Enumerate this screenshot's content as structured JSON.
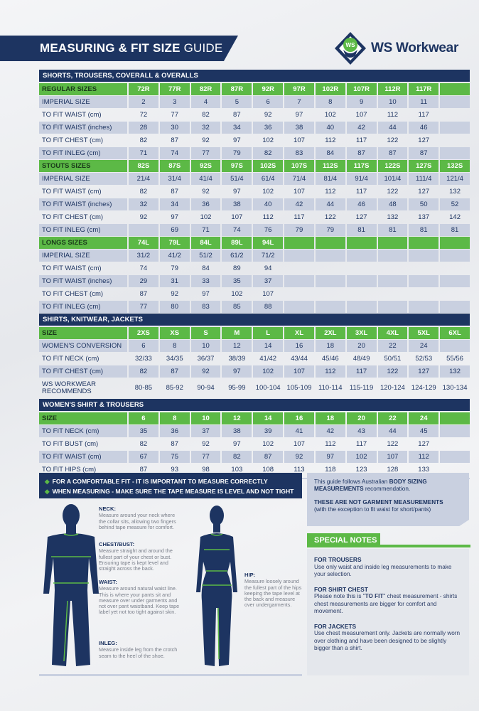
{
  "header": {
    "title_bold": "MEASURING & FIT SIZE",
    "title_light": "GUIDE",
    "brand": "WS Workwear",
    "logo_text": "WS"
  },
  "colors": {
    "navy": "#1d3461",
    "green": "#5cb946",
    "row_shade": "#c9d0e0"
  },
  "sections": [
    {
      "title": "SHORTS, TROUSERS, COVERALL & OVERALLS",
      "groups": [
        {
          "header": [
            "REGULAR SIZES",
            "72R",
            "77R",
            "82R",
            "87R",
            "92R",
            "97R",
            "102R",
            "107R",
            "112R",
            "117R",
            ""
          ],
          "rows": [
            [
              "IMPERIAL SIZE",
              "2",
              "3",
              "4",
              "5",
              "6",
              "7",
              "8",
              "9",
              "10",
              "11",
              ""
            ],
            [
              "TO FIT WAIST (cm)",
              "72",
              "77",
              "82",
              "87",
              "92",
              "97",
              "102",
              "107",
              "112",
              "117",
              ""
            ],
            [
              "TO FIT WAIST (inches)",
              "28",
              "30",
              "32",
              "34",
              "36",
              "38",
              "40",
              "42",
              "44",
              "46",
              ""
            ],
            [
              "TO FIT CHEST (cm)",
              "82",
              "87",
              "92",
              "97",
              "102",
              "107",
              "112",
              "117",
              "122",
              "127",
              ""
            ],
            [
              "TO FIT INLEG (cm)",
              "71",
              "74",
              "77",
              "79",
              "82",
              "83",
              "84",
              "87",
              "87",
              "87",
              ""
            ]
          ]
        },
        {
          "header": [
            "STOUTS SIZES",
            "82S",
            "87S",
            "92S",
            "97S",
            "102S",
            "107S",
            "112S",
            "117S",
            "122S",
            "127S",
            "132S"
          ],
          "rows": [
            [
              "IMPERIAL SIZE",
              "21/4",
              "31/4",
              "41/4",
              "51/4",
              "61/4",
              "71/4",
              "81/4",
              "91/4",
              "101/4",
              "111/4",
              "121/4"
            ],
            [
              "TO FIT WAIST (cm)",
              "82",
              "87",
              "92",
              "97",
              "102",
              "107",
              "112",
              "117",
              "122",
              "127",
              "132"
            ],
            [
              "TO FIT WAIST (inches)",
              "32",
              "34",
              "36",
              "38",
              "40",
              "42",
              "44",
              "46",
              "48",
              "50",
              "52"
            ],
            [
              "TO FIT CHEST (cm)",
              "92",
              "97",
              "102",
              "107",
              "112",
              "117",
              "122",
              "127",
              "132",
              "137",
              "142"
            ],
            [
              "TO FIT INLEG (cm)",
              "",
              "69",
              "71",
              "74",
              "76",
              "79",
              "79",
              "81",
              "81",
              "81",
              "81"
            ]
          ]
        },
        {
          "header": [
            "LONGS SIZES",
            "74L",
            "79L",
            "84L",
            "89L",
            "94L",
            "",
            "",
            "",
            "",
            "",
            ""
          ],
          "rows": [
            [
              "IMPERIAL SIZE",
              "31/2",
              "41/2",
              "51/2",
              "61/2",
              "71/2",
              "",
              "",
              "",
              "",
              "",
              ""
            ],
            [
              "TO FIT WAIST (cm)",
              "74",
              "79",
              "84",
              "89",
              "94",
              "",
              "",
              "",
              "",
              "",
              ""
            ],
            [
              "TO FIT WAIST (inches)",
              "29",
              "31",
              "33",
              "35",
              "37",
              "",
              "",
              "",
              "",
              "",
              ""
            ],
            [
              "TO FIT CHEST (cm)",
              "87",
              "92",
              "97",
              "102",
              "107",
              "",
              "",
              "",
              "",
              "",
              ""
            ],
            [
              "TO FIT INLEG (cm)",
              "77",
              "80",
              "83",
              "85",
              "88",
              "",
              "",
              "",
              "",
              "",
              ""
            ]
          ]
        }
      ]
    },
    {
      "title": "SHIRTS, KNITWEAR, JACKETS",
      "groups": [
        {
          "header": [
            "SIZE",
            "2XS",
            "XS",
            "S",
            "M",
            "L",
            "XL",
            "2XL",
            "3XL",
            "4XL",
            "5XL",
            "6XL"
          ],
          "rows": [
            [
              "WOMEN'S CONVERSION",
              "6",
              "8",
              "10",
              "12",
              "14",
              "16",
              "18",
              "20",
              "22",
              "24",
              ""
            ],
            [
              "TO FIT NECK (cm)",
              "32/33",
              "34/35",
              "36/37",
              "38/39",
              "41/42",
              "43/44",
              "45/46",
              "48/49",
              "50/51",
              "52/53",
              "55/56"
            ],
            [
              "TO FIT CHEST (cm)",
              "82",
              "87",
              "92",
              "97",
              "102",
              "107",
              "112",
              "117",
              "122",
              "127",
              "132"
            ],
            [
              "WS WORKWEAR RECOMMENDS",
              "80-85",
              "85-92",
              "90-94",
              "95-99",
              "100-104",
              "105-109",
              "110-114",
              "115-119",
              "120-124",
              "124-129",
              "130-134"
            ]
          ]
        }
      ]
    },
    {
      "title": "WOMEN'S SHIRT & TROUSERS",
      "groups": [
        {
          "header": [
            "SIZE",
            "6",
            "8",
            "10",
            "12",
            "14",
            "16",
            "18",
            "20",
            "22",
            "24",
            ""
          ],
          "rows": [
            [
              "TO FIT NECK (cm)",
              "35",
              "36",
              "37",
              "38",
              "39",
              "41",
              "42",
              "43",
              "44",
              "45",
              ""
            ],
            [
              "TO FIT BUST (cm)",
              "82",
              "87",
              "92",
              "97",
              "102",
              "107",
              "112",
              "117",
              "122",
              "127",
              ""
            ],
            [
              "TO FIT WAIST (cm)",
              "67",
              "75",
              "77",
              "82",
              "87",
              "92",
              "97",
              "102",
              "107",
              "112",
              ""
            ],
            [
              "TO FIT HIPS (cm)",
              "87",
              "93",
              "98",
              "103",
              "108",
              "113",
              "118",
              "123",
              "128",
              "133",
              ""
            ]
          ]
        }
      ]
    }
  ],
  "tips": [
    "FOR A COMFORTABLE FIT - IT IS IMPORTANT TO MEASURE CORRECTLY",
    "WHEN MEASURING - MAKE SURE THE TAPE MEASURE IS LEVEL AND NOT TIGHT"
  ],
  "measure": {
    "neck": {
      "title": "NECK:",
      "text": "Measure around your neck where the collar sits, allowing two fingers behind tape measure for comfort."
    },
    "chest": {
      "title": "CHEST/BUST:",
      "text": "Measure straight and around the fullest part of your chest or bust. Ensuring tape is kept level and straight across the back."
    },
    "waist": {
      "title": "WAIST:",
      "text": "Measure around natural waist line. This is where your pants sit and measure over under garments and not over pant waistband. Keep tape label yet not too tight against skin."
    },
    "inleg": {
      "title": "INLEG:",
      "text": "Measure inside leg from the crotch seam to the heel of the shoe."
    },
    "hip": {
      "title": "HIP:",
      "text": "Measure loosely around the fullest part of the hips keeping the tape level at the back and measure over undergarments."
    }
  },
  "info": {
    "p1_pre": "This guide follows Australian ",
    "p1_bold": "BODY SIZING MEASUREMENTS",
    "p1_post": " recommendation.",
    "p2_bold": "THESE ARE NOT GARMENT MEASUREMENTS",
    "p2_text": "(with the exception to fit waist for short/pants)"
  },
  "special_notes": {
    "title": "SPECIAL NOTES",
    "items": [
      {
        "title": "FOR TROUSERS",
        "text": "Use only waist and inside leg measurements to make your selection."
      },
      {
        "title": "FOR SHIRT CHEST",
        "pre": "Please note this is \"",
        "bold": "TO FIT",
        "post": "\" chest measurement - shirts chest measurements are bigger for comfort and movement."
      },
      {
        "title": "FOR JACKETS",
        "text": "Use chest measurement only. Jackets are normally worn over clothing and have been designed to be slightly bigger than a shirt."
      }
    ]
  }
}
